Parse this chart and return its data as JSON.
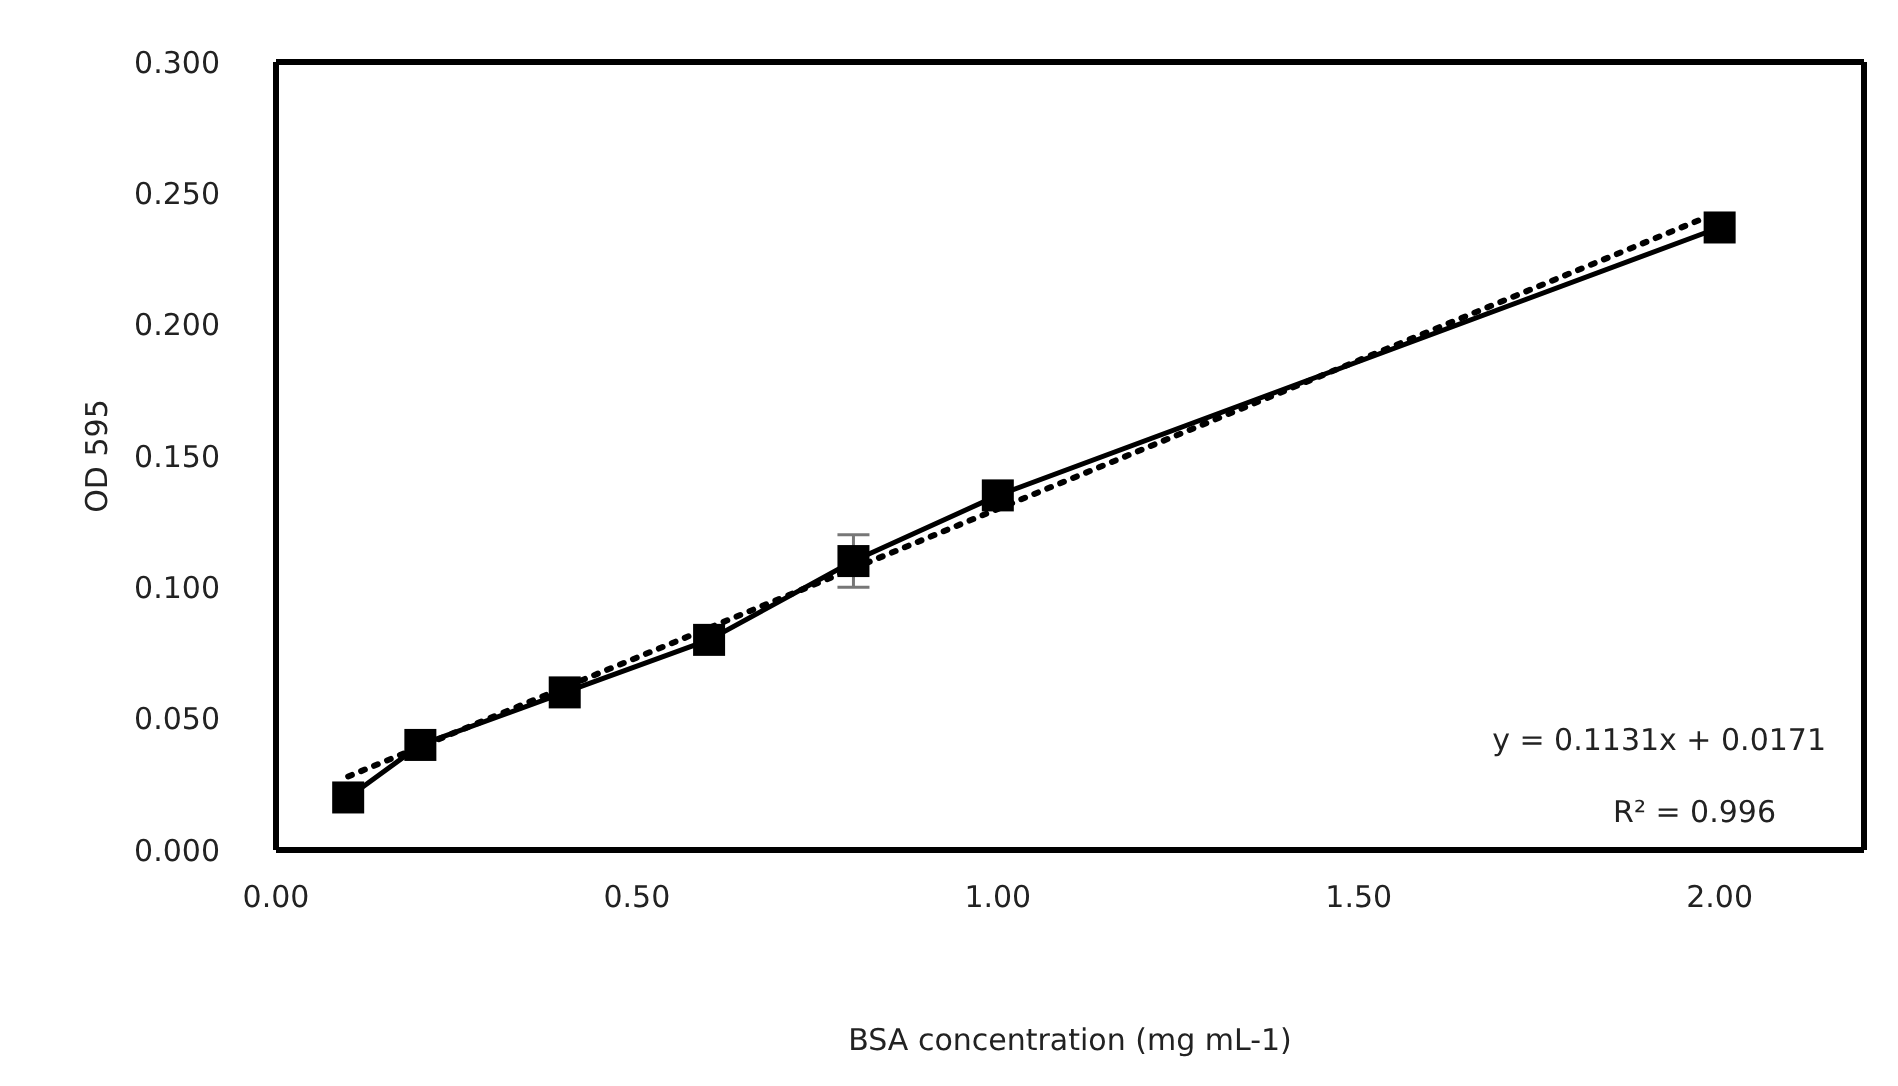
{
  "chart_data": {
    "type": "line",
    "xlabel": "BSA concentration (mg mL-1)",
    "ylabel": "OD 595",
    "x": [
      0.1,
      0.2,
      0.4,
      0.6,
      0.8,
      1.0,
      2.0
    ],
    "series": [
      {
        "type": "line",
        "color": "#000000",
        "marker": "square",
        "line_style": "solid",
        "values": [
          0.02,
          0.04,
          0.06,
          0.08,
          0.11,
          0.135,
          0.237
        ],
        "errors": [
          null,
          null,
          null,
          null,
          0.01,
          null,
          null
        ]
      },
      {
        "type": "line",
        "color": "#000000",
        "marker": "none",
        "line_style": "dotted",
        "x": [
          0.1,
          2.0
        ],
        "values": [
          0.028,
          0.243
        ]
      }
    ],
    "xlim": [
      0,
      2.2
    ],
    "ylim": [
      0,
      0.3
    ],
    "xticks": [
      {
        "value": 0,
        "label": "0.00"
      },
      {
        "value": 0.5,
        "label": "0.50"
      },
      {
        "value": 1,
        "label": "1.00"
      },
      {
        "value": 1.5,
        "label": "1.50"
      },
      {
        "value": 2,
        "label": "2.00"
      }
    ],
    "yticks": [
      {
        "value": 0,
        "label": "0.000"
      },
      {
        "value": 0.05,
        "label": "0.050"
      },
      {
        "value": 0.1,
        "label": "0.100"
      },
      {
        "value": 0.15,
        "label": "0.150"
      },
      {
        "value": 0.2,
        "label": "0.200"
      },
      {
        "value": 0.25,
        "label": "0.250"
      },
      {
        "value": 0.3,
        "label": "0.300"
      }
    ],
    "annotations": [
      "y = 0.1131x + 0.0171",
      "R² = 0.996"
    ]
  }
}
